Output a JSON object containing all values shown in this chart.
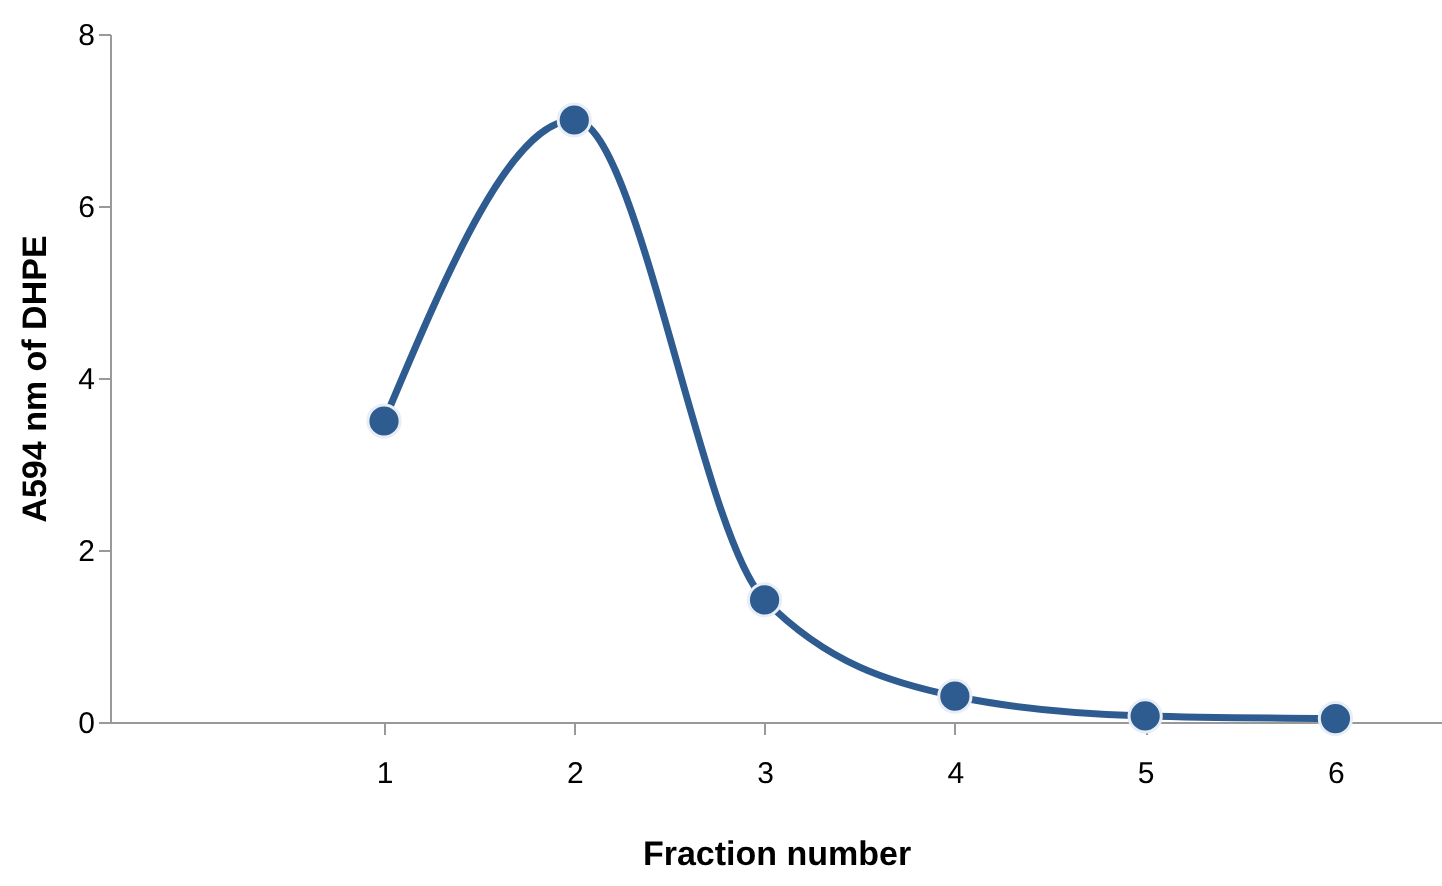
{
  "chart_data": {
    "type": "line",
    "xlabel": "Fraction number",
    "ylabel": "A594 nm of DHPE",
    "categories": [
      "1",
      "2",
      "3",
      "4",
      "5",
      "6"
    ],
    "series": [
      {
        "color": "#2e5c91",
        "values": [
          3.5,
          7.0,
          1.42,
          0.3,
          0.07,
          0.04
        ]
      }
    ],
    "ylim": [
      0,
      8
    ],
    "yticks": [
      0,
      2,
      4,
      6,
      8
    ],
    "grid": false,
    "marker": "circle",
    "line_style": "solid"
  }
}
